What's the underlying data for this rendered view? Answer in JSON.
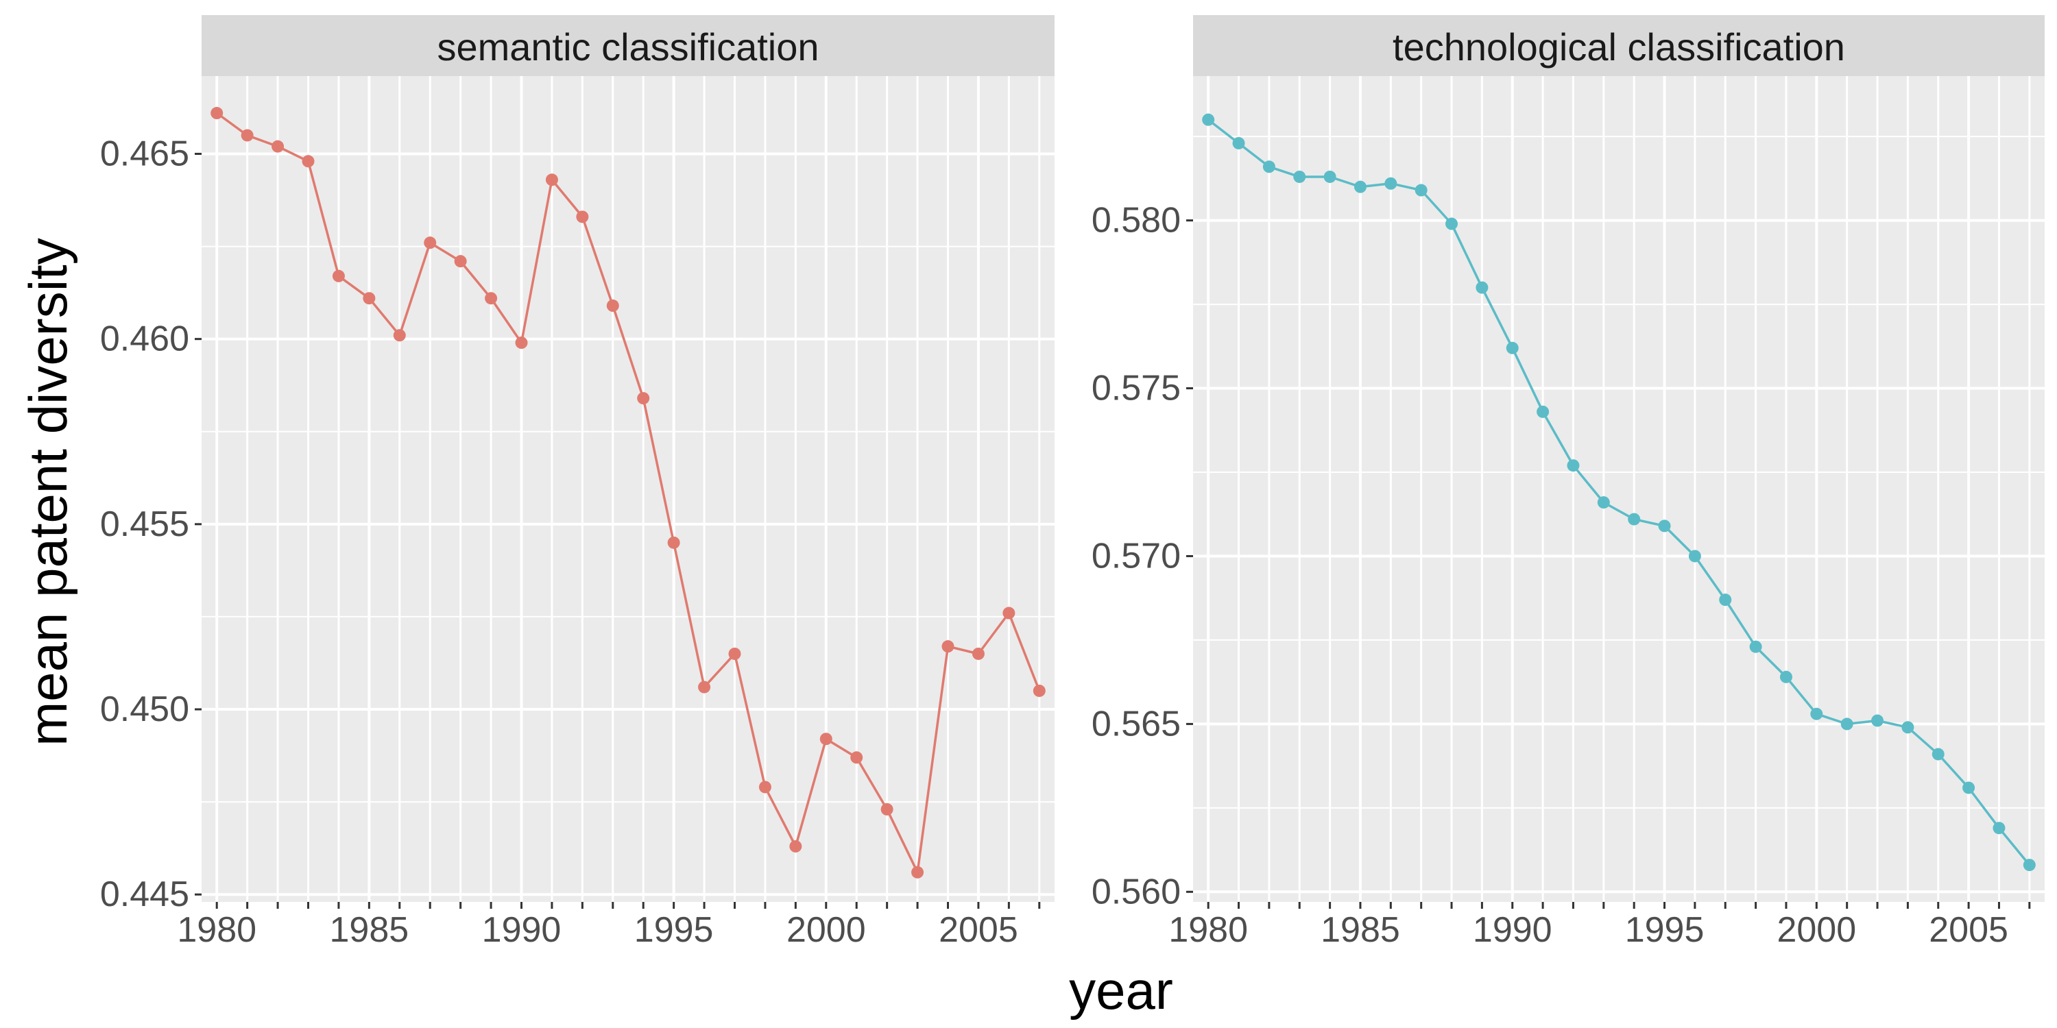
{
  "figure": {
    "xlabel": "year",
    "ylabel": "mean patent diversity",
    "panel_background": "#EBEBEB",
    "strip_background": "#D9D9D9",
    "grid_color": "#FFFFFF"
  },
  "chart_data": [
    {
      "type": "line",
      "title": "semantic classification",
      "color": "#E07A6F",
      "xlim": [
        1979.5,
        2007.5
      ],
      "ylim": [
        0.4448,
        0.4671
      ],
      "x_ticks": [
        1980,
        1985,
        1990,
        1995,
        2000,
        2005
      ],
      "x_tick_labels": [
        "1980",
        "1985",
        "1990",
        "1995",
        "2000",
        "2005"
      ],
      "y_ticks": [
        0.445,
        0.45,
        0.455,
        0.46,
        0.465
      ],
      "y_tick_labels": [
        "0.445",
        "0.450",
        "0.455",
        "0.460",
        "0.465"
      ],
      "grid": true,
      "series": [
        {
          "x": [
            1980,
            1981,
            1982,
            1983,
            1984,
            1985,
            1986,
            1987,
            1988,
            1989,
            1990,
            1991,
            1992,
            1993,
            1994,
            1995,
            1996,
            1997,
            1998,
            1999,
            2000,
            2001,
            2002,
            2003,
            2004,
            2005,
            2006,
            2007
          ],
          "values": [
            0.4661,
            0.4655,
            0.4652,
            0.4648,
            0.4617,
            0.4611,
            0.4601,
            0.4626,
            0.4621,
            0.4611,
            0.4599,
            0.4643,
            0.4633,
            0.4609,
            0.4584,
            0.4545,
            0.4506,
            0.4515,
            0.4479,
            0.4463,
            0.4492,
            0.4487,
            0.4473,
            0.4456,
            0.4517,
            0.4515,
            0.4526,
            0.4505
          ]
        }
      ]
    },
    {
      "type": "line",
      "title": "technological classification",
      "color": "#5BBCC7",
      "xlim": [
        1979.5,
        2007.5
      ],
      "ylim": [
        0.5597,
        0.5843
      ],
      "x_ticks": [
        1980,
        1985,
        1990,
        1995,
        2000,
        2005
      ],
      "x_tick_labels": [
        "1980",
        "1985",
        "1990",
        "1995",
        "2000",
        "2005"
      ],
      "y_ticks": [
        0.56,
        0.565,
        0.57,
        0.575,
        0.58
      ],
      "y_tick_labels": [
        "0.560",
        "0.565",
        "0.570",
        "0.575",
        "0.580"
      ],
      "grid": true,
      "series": [
        {
          "x": [
            1980,
            1981,
            1982,
            1983,
            1984,
            1985,
            1986,
            1987,
            1988,
            1989,
            1990,
            1991,
            1992,
            1993,
            1994,
            1995,
            1996,
            1997,
            1998,
            1999,
            2000,
            2001,
            2002,
            2003,
            2004,
            2005,
            2006,
            2007
          ],
          "values": [
            0.583,
            0.5823,
            0.5816,
            0.5813,
            0.5813,
            0.581,
            0.5811,
            0.5809,
            0.5799,
            0.578,
            0.5762,
            0.5743,
            0.5727,
            0.5716,
            0.5711,
            0.5709,
            0.57,
            0.5687,
            0.5673,
            0.5664,
            0.5653,
            0.565,
            0.5651,
            0.5649,
            0.5641,
            0.5631,
            0.5619,
            0.5608
          ]
        }
      ]
    }
  ]
}
